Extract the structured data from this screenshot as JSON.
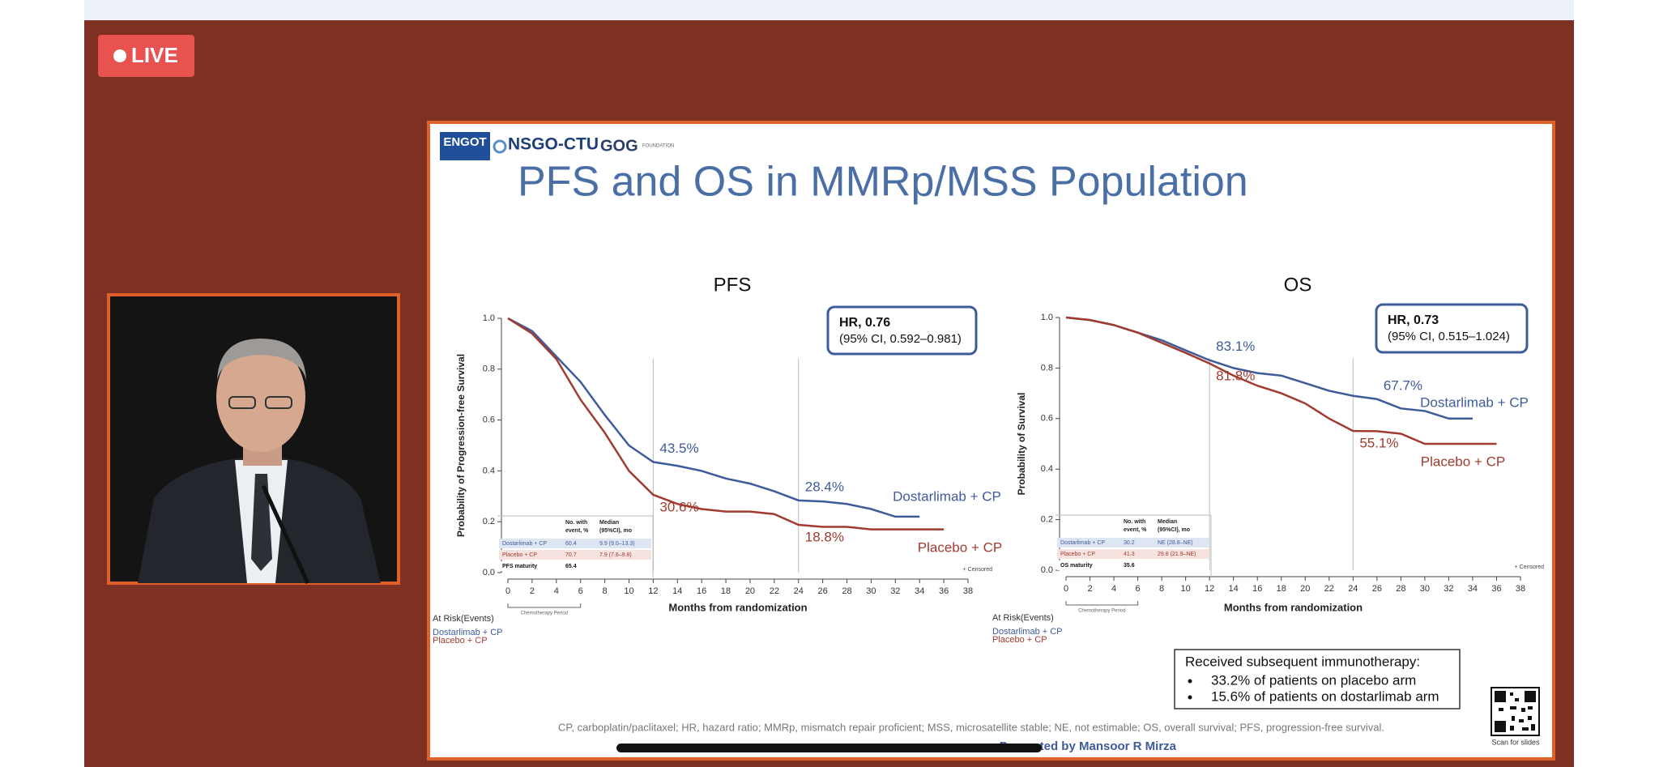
{
  "live_badge": "LIVE",
  "slide": {
    "logos": [
      "ENGOT",
      "NSGO-CTU",
      "GOG",
      "FOUNDATION"
    ],
    "title": "PFS and OS in MMRp/MSS Population",
    "callout": {
      "title": "Received subsequent immunotherapy:",
      "items": [
        "33.2% of patients on placebo arm",
        "15.6% of patients on dostarlimab arm"
      ]
    },
    "footnote": "CP, carboplatin/paclitaxel; HR, hazard ratio; MMRp, mismatch repair proficient; MSS, microsatellite stable; NE, not estimable; OS, overall survival; PFS, progression-free survival.",
    "presenter": "Presented by Mansoor R Mirza",
    "qr_caption": "Scan for slides"
  },
  "chart_data": [
    {
      "type": "line",
      "title": "PFS",
      "xlabel": "Months from randomization",
      "ylabel": "Probability of Progression-free Survival",
      "xlim": [
        0,
        38
      ],
      "xticks": [
        0,
        2,
        4,
        6,
        8,
        10,
        12,
        14,
        16,
        18,
        20,
        22,
        24,
        26,
        28,
        30,
        32,
        34,
        36,
        38
      ],
      "ylim": [
        0,
        1
      ],
      "yticks": [
        {
          "value": 0,
          "label": "0.0"
        },
        0.2,
        0.4,
        0.6,
        0.8,
        {
          "value": 1,
          "label": "1.0"
        }
      ],
      "x": [
        0,
        2,
        4,
        6,
        8,
        10,
        12,
        14,
        16,
        18,
        20,
        22,
        24,
        26,
        28,
        30,
        32,
        34,
        36
      ],
      "series": [
        {
          "name": "Dostarlimab + CP",
          "color": "#3f5b9c",
          "values": [
            1.0,
            0.95,
            0.85,
            0.75,
            0.62,
            0.5,
            0.435,
            0.42,
            0.4,
            0.37,
            0.35,
            0.32,
            0.284,
            0.28,
            0.27,
            0.25,
            0.22,
            0.22,
            null
          ],
          "value_labels": [
            null,
            null,
            null,
            null,
            null,
            null,
            "43.5%",
            null,
            null,
            null,
            null,
            null,
            "28.4%",
            null,
            null,
            null,
            null,
            null,
            null
          ]
        },
        {
          "name": "Placebo + CP",
          "color": "#a23b2f",
          "values": [
            1.0,
            0.94,
            0.84,
            0.68,
            0.55,
            0.4,
            0.306,
            0.27,
            0.25,
            0.24,
            0.24,
            0.23,
            0.188,
            0.18,
            0.18,
            0.17,
            0.17,
            0.17,
            0.17
          ],
          "value_labels": [
            null,
            null,
            null,
            null,
            null,
            null,
            "30.6%",
            null,
            null,
            null,
            null,
            null,
            "18.8%",
            null,
            null,
            null,
            null,
            null,
            null
          ]
        }
      ],
      "hr": {
        "label": "HR, 0.76",
        "ci": "(95% CI, 0.592–0.981)"
      },
      "table": {
        "header": [
          [
            "No. with",
            "event, %"
          ],
          [
            "Median",
            "(95%CI), mo"
          ]
        ],
        "rows": [
          [
            "Dostarlimab + CP",
            "60.4",
            "9.9 (9.0–13.3)"
          ],
          [
            "Placebo + CP",
            "70.7",
            "7.9 (7.6–9.8)"
          ],
          [
            "PFS maturity",
            "65.4"
          ]
        ]
      },
      "censored_label": "+ Censored",
      "period_label": "Chemotherapy Period",
      "at_risk_label": "At Risk(Events)"
    },
    {
      "type": "line",
      "title": "OS",
      "xlabel": "Months from randomization",
      "ylabel": "Probability of Survival",
      "xlim": [
        0,
        38
      ],
      "xticks": [
        0,
        2,
        4,
        6,
        8,
        10,
        12,
        14,
        16,
        18,
        20,
        22,
        24,
        26,
        28,
        30,
        32,
        34,
        36,
        38
      ],
      "ylim": [
        0,
        1
      ],
      "yticks": [
        {
          "value": 0,
          "label": "0.0"
        },
        0.2,
        0.4,
        0.6,
        0.8,
        {
          "value": 1,
          "label": "1.0"
        }
      ],
      "x": [
        0,
        2,
        4,
        6,
        8,
        10,
        12,
        14,
        16,
        18,
        20,
        22,
        24,
        26,
        28,
        30,
        32,
        34,
        36
      ],
      "series": [
        {
          "name": "Dostarlimab + CP",
          "color": "#3f5b9c",
          "values": [
            1.0,
            0.99,
            0.97,
            0.94,
            0.91,
            0.87,
            0.831,
            0.8,
            0.78,
            0.77,
            0.74,
            0.71,
            0.69,
            0.677,
            0.64,
            0.63,
            0.6,
            0.6,
            null
          ],
          "value_labels": [
            null,
            null,
            null,
            null,
            null,
            null,
            "83.1%",
            null,
            null,
            null,
            null,
            null,
            null,
            "67.7%",
            null,
            null,
            null,
            null,
            null
          ]
        },
        {
          "name": "Placebo + CP",
          "color": "#a23b2f",
          "values": [
            1.0,
            0.99,
            0.97,
            0.94,
            0.9,
            0.86,
            0.818,
            0.77,
            0.73,
            0.7,
            0.66,
            0.6,
            0.551,
            0.55,
            0.54,
            0.5,
            0.5,
            0.5,
            0.5
          ],
          "value_labels": [
            null,
            null,
            null,
            null,
            null,
            null,
            "81.8%",
            null,
            null,
            null,
            null,
            null,
            "55.1%",
            null,
            null,
            null,
            null,
            null,
            null
          ]
        }
      ],
      "hr": {
        "label": "HR, 0.73",
        "ci": "(95% CI, 0.515–1.024)"
      },
      "table": {
        "header": [
          [
            "No. with",
            "event, %"
          ],
          [
            "Median",
            "(95%CI), mo"
          ]
        ],
        "rows": [
          [
            "Dostarlimab + CP",
            "30.2",
            "NE (28.8–NE)"
          ],
          [
            "Placebo + CP",
            "41.3",
            "29.8 (21.9–NE)"
          ],
          [
            "OS maturity",
            "35.6"
          ]
        ]
      },
      "censored_label": "+ Censored",
      "period_label": "Chemotherapy Period",
      "at_risk_label": "At Risk(Events)"
    }
  ]
}
